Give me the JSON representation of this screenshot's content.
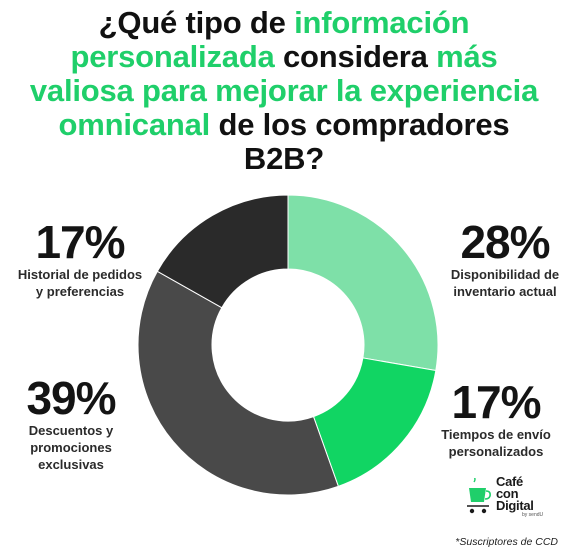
{
  "title": {
    "p1": "¿Qué tipo de ",
    "h1": "información personalizada",
    "p2": " considera ",
    "h2": "más valiosa para mejorar la experiencia omnicanal",
    "p3": " de los compradores B2B?"
  },
  "chart_data": {
    "type": "pie",
    "variant": "donut",
    "unit": "%",
    "slices": [
      {
        "label": "Disponibilidad de inventario actual",
        "value": 28,
        "display": "28%",
        "color": "#7ee0a8"
      },
      {
        "label": "Tiempos de envío personalizados",
        "value": 17,
        "display": "17%",
        "color": "#11d563"
      },
      {
        "label": "Descuentos y promociones exclusivas",
        "value": 39,
        "display": "39%",
        "color": "#494949"
      },
      {
        "label": "Historial de pedidos y preferencias",
        "value": 17,
        "display": "17%",
        "color": "#2a2a2a"
      }
    ]
  },
  "labels": {
    "top_right": {
      "pct": "28%",
      "line1": "Disponibilidad de",
      "line2": "inventario actual"
    },
    "bottom_right": {
      "pct": "17%",
      "line1": "Tiempos de envío",
      "line2": "personalizados"
    },
    "bottom_left": {
      "pct": "39%",
      "line1": "Descuentos y",
      "line2": "promociones",
      "line3": "exclusivas"
    },
    "top_left": {
      "pct": "17%",
      "line1": "Historial de pedidos",
      "line2": "y preferencias"
    }
  },
  "logo": {
    "line1": "Café",
    "line2": "con",
    "line3": "Digital",
    "by": "by sendU",
    "icon": "coffee-cup-cart-icon",
    "color": "#1fcf6a"
  },
  "footnote": "*Suscriptores de CCD"
}
